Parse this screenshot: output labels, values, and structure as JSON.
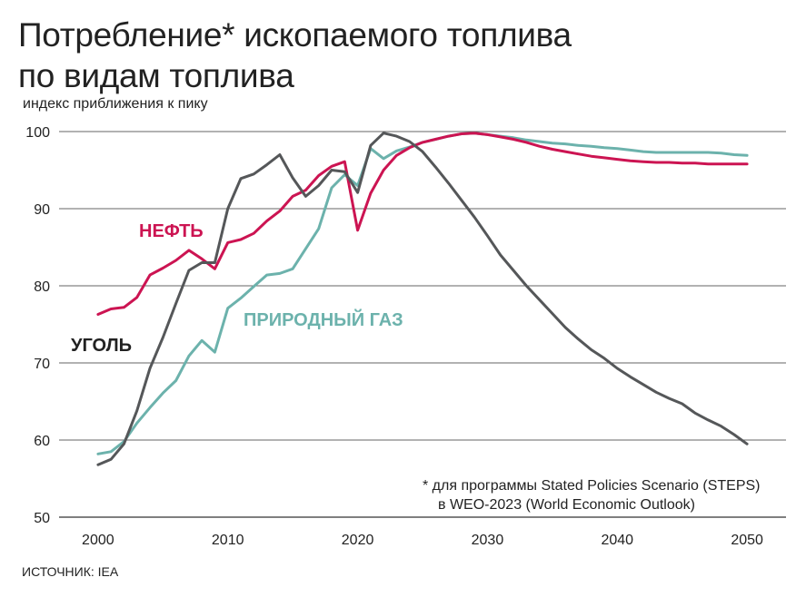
{
  "title_line1": "Потребление* ископаемого топлива",
  "title_line2": "по видам топлива",
  "subtitle": "индекс приближения к пику",
  "source": "ИСТОЧНИК: IEA",
  "note_line1": "* для программы Stated Policies Scenario (STEPS)",
  "note_line2": "в WEO-2023 (World Economic Outlook)",
  "chart_data": {
    "type": "line",
    "ylabel": "индекс приближения к пику",
    "xlim": [
      1997,
      2053
    ],
    "ylim": [
      50,
      100
    ],
    "x_ticks": [
      2000,
      2010,
      2020,
      2030,
      2040,
      2050
    ],
    "y_ticks": [
      50,
      60,
      70,
      80,
      90,
      100
    ],
    "grid": "horizontal",
    "series": [
      {
        "name": "НЕФТЬ",
        "color": "#cc1452",
        "x": [
          2000,
          2001,
          2002,
          2003,
          2004,
          2005,
          2006,
          2007,
          2008,
          2009,
          2010,
          2011,
          2012,
          2013,
          2014,
          2015,
          2016,
          2017,
          2018,
          2019,
          2020,
          2021,
          2022,
          2023,
          2024,
          2025,
          2026,
          2027,
          2028,
          2029,
          2030,
          2031,
          2032,
          2033,
          2034,
          2035,
          2036,
          2037,
          2038,
          2039,
          2040,
          2041,
          2042,
          2043,
          2044,
          2045,
          2046,
          2047,
          2048,
          2049,
          2050
        ],
        "values": [
          76.3,
          77.0,
          77.2,
          78.5,
          81.4,
          82.3,
          83.3,
          84.6,
          83.5,
          82.2,
          85.6,
          86.0,
          86.8,
          88.4,
          89.7,
          91.6,
          92.4,
          94.3,
          95.5,
          96.1,
          87.2,
          92.0,
          95.0,
          96.9,
          97.9,
          98.6,
          99.0,
          99.4,
          99.7,
          99.8,
          99.6,
          99.3,
          99.0,
          98.6,
          98.1,
          97.7,
          97.4,
          97.1,
          96.8,
          96.6,
          96.4,
          96.2,
          96.1,
          96.0,
          96.0,
          95.9,
          95.9,
          95.8,
          95.8,
          95.8,
          95.8
        ]
      },
      {
        "name": "ПРИРОДНЫЙ ГАЗ",
        "color": "#6cb2ac",
        "x": [
          2000,
          2001,
          2002,
          2003,
          2004,
          2005,
          2006,
          2007,
          2008,
          2009,
          2010,
          2011,
          2012,
          2013,
          2014,
          2015,
          2016,
          2017,
          2018,
          2019,
          2020,
          2021,
          2022,
          2023,
          2024,
          2025,
          2026,
          2027,
          2028,
          2029,
          2030,
          2031,
          2032,
          2033,
          2034,
          2035,
          2036,
          2037,
          2038,
          2039,
          2040,
          2041,
          2042,
          2043,
          2044,
          2045,
          2046,
          2047,
          2048,
          2049,
          2050
        ],
        "values": [
          58.2,
          58.5,
          59.8,
          62.2,
          64.2,
          66.1,
          67.7,
          70.9,
          72.9,
          71.4,
          77.1,
          78.4,
          79.9,
          81.4,
          81.6,
          82.2,
          84.8,
          87.4,
          92.7,
          94.4,
          93.0,
          97.8,
          96.5,
          97.5,
          98.0,
          98.6,
          99.0,
          99.4,
          99.7,
          99.8,
          99.6,
          99.4,
          99.2,
          98.9,
          98.7,
          98.5,
          98.4,
          98.2,
          98.1,
          97.9,
          97.8,
          97.6,
          97.4,
          97.3,
          97.3,
          97.3,
          97.3,
          97.3,
          97.2,
          97.0,
          96.9
        ]
      },
      {
        "name": "УГОЛЬ",
        "color": "#555759",
        "x": [
          2000,
          2001,
          2002,
          2003,
          2004,
          2005,
          2006,
          2007,
          2008,
          2009,
          2010,
          2011,
          2012,
          2013,
          2014,
          2015,
          2016,
          2017,
          2018,
          2019,
          2020,
          2021,
          2022,
          2023,
          2024,
          2025,
          2026,
          2027,
          2028,
          2029,
          2030,
          2031,
          2032,
          2033,
          2034,
          2035,
          2036,
          2037,
          2038,
          2039,
          2040,
          2041,
          2042,
          2043,
          2044,
          2045,
          2046,
          2047,
          2048,
          2049,
          2050
        ],
        "values": [
          56.8,
          57.5,
          59.5,
          63.8,
          69.3,
          73.3,
          77.7,
          82.0,
          83.0,
          83.0,
          90.0,
          93.9,
          94.5,
          95.7,
          97.0,
          94.0,
          91.6,
          93.0,
          95.0,
          94.8,
          92.1,
          98.2,
          99.8,
          99.4,
          98.7,
          97.4,
          95.4,
          93.3,
          91.1,
          88.9,
          86.5,
          84.0,
          82.0,
          80.0,
          78.2,
          76.4,
          74.6,
          73.1,
          71.7,
          70.6,
          69.3,
          68.2,
          67.2,
          66.2,
          65.4,
          64.7,
          63.5,
          62.6,
          61.8,
          60.7,
          59.5
        ]
      }
    ]
  }
}
